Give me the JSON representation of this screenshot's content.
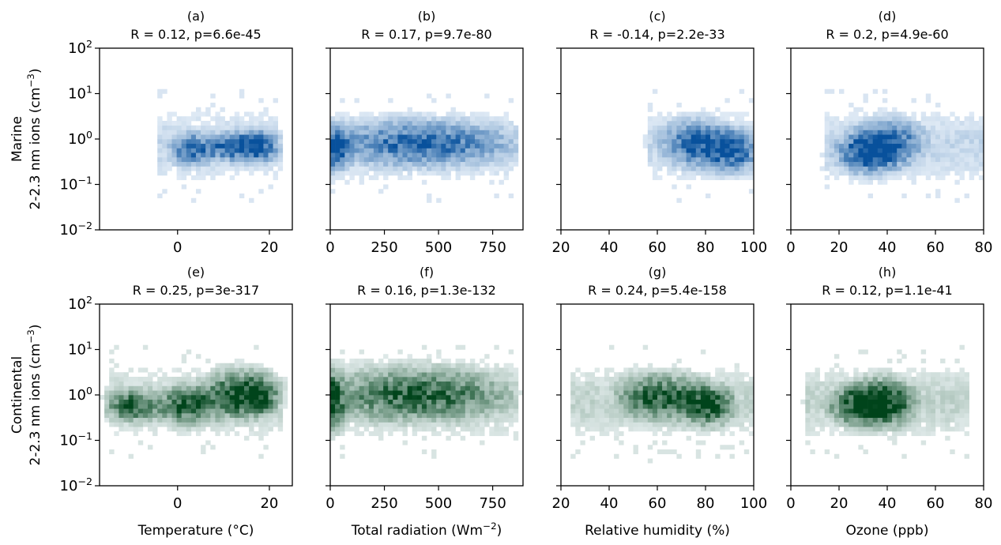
{
  "chart_data": {
    "type": "heatmap",
    "y_scale": "log",
    "y_range": [
      0.01,
      100
    ],
    "y_ticks": [
      0.01,
      0.1,
      1,
      10,
      100
    ],
    "y_tick_labels": [
      "10^-2",
      "10^-1",
      "10^0",
      "10^1",
      "10^2"
    ],
    "rows": [
      {
        "name": "Marine",
        "ylabel_line1": "Marine",
        "ylabel_line2": "2-2.3 nm ions (cm^-3)",
        "color": "#08519c",
        "colormap": "Blues"
      },
      {
        "name": "Continental",
        "ylabel_line1": "Continental",
        "ylabel_line2": "2-2.3 nm ions (cm^-3)",
        "color": "#00441b",
        "colormap": "Greens"
      }
    ],
    "columns": [
      {
        "xlabel": "Temperature (°C)",
        "xlim": [
          -17,
          25
        ],
        "xticks": [
          0,
          20
        ]
      },
      {
        "xlabel": "Total radiation (Wm^-2)",
        "xlim": [
          0,
          890
        ],
        "xticks": [
          0,
          250,
          500,
          750
        ]
      },
      {
        "xlabel": "Relative humidity (%)",
        "xlim": [
          20,
          100
        ],
        "xticks": [
          20,
          40,
          60,
          80,
          100
        ]
      },
      {
        "xlabel": "Ozone (ppb)",
        "xlim": [
          0,
          80
        ],
        "xticks": [
          0,
          20,
          40,
          60,
          80
        ]
      }
    ],
    "panels": [
      {
        "letter": "(a)",
        "stats": "R = 0.12, p=6.6e-45",
        "row": 0,
        "col": 0,
        "blobs": [
          {
            "cx": 3,
            "sx": 3.5,
            "cy": 0.6,
            "sy": 0.25
          },
          {
            "cx": 12,
            "sx": 3.5,
            "cy": 0.7,
            "sy": 0.22
          },
          {
            "cx": 18,
            "sx": 3,
            "cy": 0.7,
            "sy": 0.25
          }
        ],
        "data_xrange": [
          -4,
          22
        ]
      },
      {
        "letter": "(b)",
        "stats": "R = 0.17, p=9.7e-80",
        "row": 0,
        "col": 1,
        "blobs": [
          {
            "cx": 20,
            "sx": 40,
            "cy": 0.6,
            "sy": 0.3
          },
          {
            "cx": 420,
            "sx": 300,
            "cy": 0.8,
            "sy": 0.35
          }
        ],
        "data_xrange": [
          0,
          850
        ]
      },
      {
        "letter": "(c)",
        "stats": "R = -0.14, p=2.2e-33",
        "row": 0,
        "col": 2,
        "blobs": [
          {
            "cx": 92,
            "sx": 8,
            "cy": 0.55,
            "sy": 0.3
          },
          {
            "cx": 75,
            "sx": 10,
            "cy": 0.8,
            "sy": 0.35
          }
        ],
        "data_xrange": [
          56,
          100
        ]
      },
      {
        "letter": "(d)",
        "stats": "R = 0.2, p=4.9e-60",
        "row": 0,
        "col": 3,
        "blobs": [
          {
            "cx": 42,
            "sx": 10,
            "cy": 0.8,
            "sy": 0.35
          },
          {
            "cx": 30,
            "sx": 8,
            "cy": 0.5,
            "sy": 0.3
          }
        ],
        "data_xrange": [
          14,
          80
        ]
      },
      {
        "letter": "(e)",
        "stats": "R = 0.25, p=3e-317",
        "row": 1,
        "col": 0,
        "blobs": [
          {
            "cx": 2,
            "sx": 4,
            "cy": 0.6,
            "sy": 0.3
          },
          {
            "cx": 12,
            "sx": 4,
            "cy": 1.0,
            "sy": 0.35
          },
          {
            "cx": 18,
            "sx": 3,
            "cy": 1.0,
            "sy": 0.3
          },
          {
            "cx": -10,
            "sx": 4,
            "cy": 0.6,
            "sy": 0.25
          }
        ],
        "data_xrange": [
          -15,
          23
        ]
      },
      {
        "letter": "(f)",
        "stats": "R = 0.16, p=1.3e-132",
        "row": 1,
        "col": 1,
        "blobs": [
          {
            "cx": 15,
            "sx": 30,
            "cy": 0.7,
            "sy": 0.4
          },
          {
            "cx": 400,
            "sx": 300,
            "cy": 1.0,
            "sy": 0.4
          }
        ],
        "data_xrange": [
          0,
          850
        ]
      },
      {
        "letter": "(g)",
        "stats": "R = 0.24, p=5.4e-158",
        "row": 1,
        "col": 2,
        "blobs": [
          {
            "cx": 82,
            "sx": 8,
            "cy": 0.6,
            "sy": 0.3
          },
          {
            "cx": 60,
            "sx": 12,
            "cy": 0.9,
            "sy": 0.35
          }
        ],
        "data_xrange": [
          24,
          100
        ]
      },
      {
        "letter": "(h)",
        "stats": "R = 0.12, p=1.1e-41",
        "row": 1,
        "col": 3,
        "blobs": [
          {
            "cx": 40,
            "sx": 9,
            "cy": 0.7,
            "sy": 0.35
          },
          {
            "cx": 28,
            "sx": 9,
            "cy": 0.6,
            "sy": 0.3
          }
        ],
        "data_xrange": [
          6,
          74
        ]
      }
    ]
  }
}
